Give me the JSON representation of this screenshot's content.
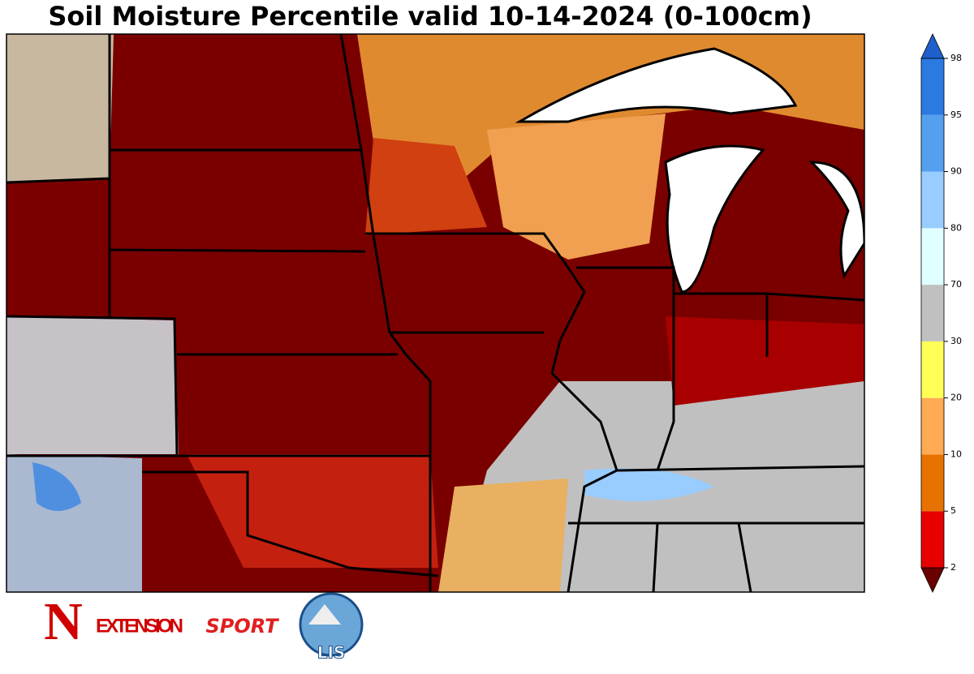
{
  "title": "Soil Moisture Percentile valid 10-14-2024 (0-100cm)",
  "colorbar": {
    "ticks": [
      2,
      5,
      10,
      20,
      30,
      70,
      80,
      90,
      95,
      98
    ],
    "colors": [
      "#6b0000",
      "#e60000",
      "#e67300",
      "#ffaa55",
      "#ffff55",
      "#c0c0c0",
      "#e0ffff",
      "#99ccff",
      "#55a0ee",
      "#2a7ae2",
      "#1f5fcc"
    ]
  },
  "logos": {
    "n": "N",
    "extension": "EXTENSION",
    "sport": "SPORT",
    "lis": "LIS"
  }
}
